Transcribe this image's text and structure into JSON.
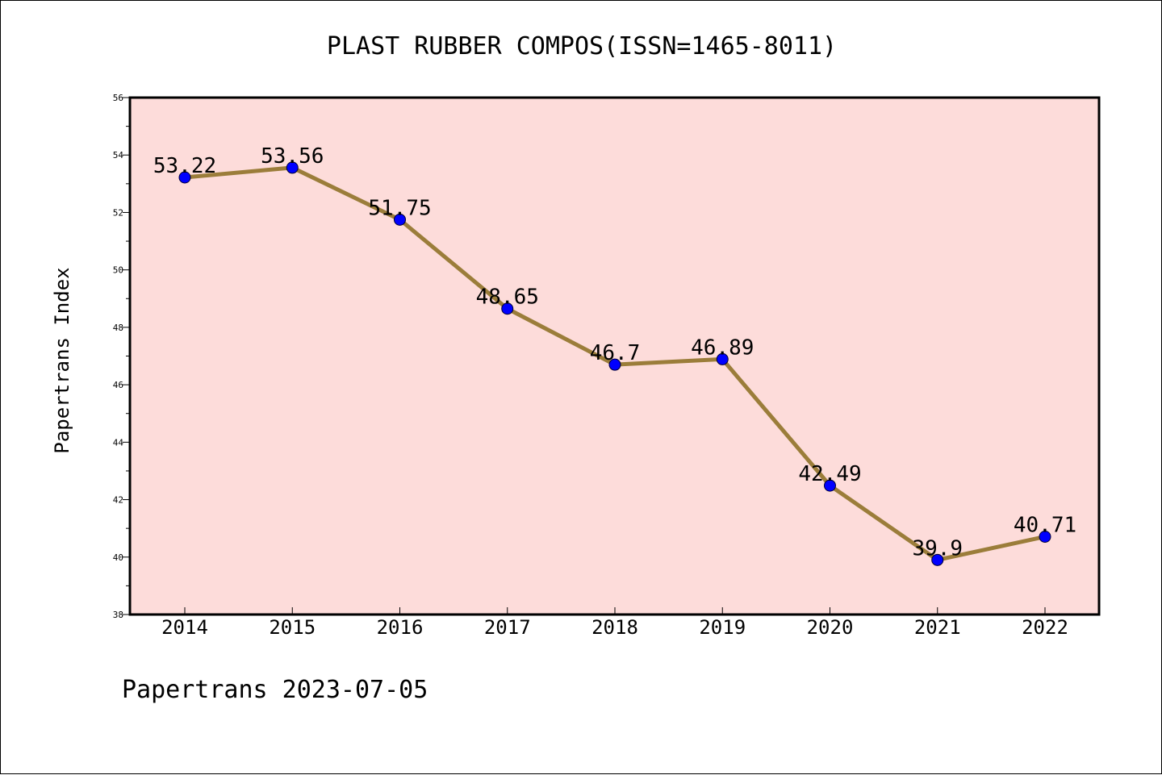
{
  "chart_data": {
    "type": "line",
    "title": "PLAST RUBBER COMPOS(ISSN=1465-8011)",
    "xlabel": "",
    "ylabel": "Papertrans Index",
    "categories": [
      "2014",
      "2015",
      "2016",
      "2017",
      "2018",
      "2019",
      "2020",
      "2021",
      "2022"
    ],
    "series": [
      {
        "values": [
          53.22,
          53.56,
          51.75,
          48.65,
          46.7,
          46.89,
          42.49,
          39.9,
          40.71
        ],
        "labels": [
          "53.22",
          "53.56",
          "51.75",
          "48.65",
          "46.7",
          "46.89",
          "42.49",
          "39.9",
          "40.71"
        ]
      }
    ],
    "ylim": [
      38,
      56
    ],
    "yticks": [
      "38",
      "40",
      "42",
      "44",
      "46",
      "48",
      "50",
      "52",
      "54",
      "56"
    ],
    "grid": false,
    "legend": "none",
    "colors": {
      "plot_background": "#fddcda",
      "line": "#9b7d3a",
      "marker": "#0000ff"
    }
  },
  "footer": "Papertrans 2023-07-05"
}
